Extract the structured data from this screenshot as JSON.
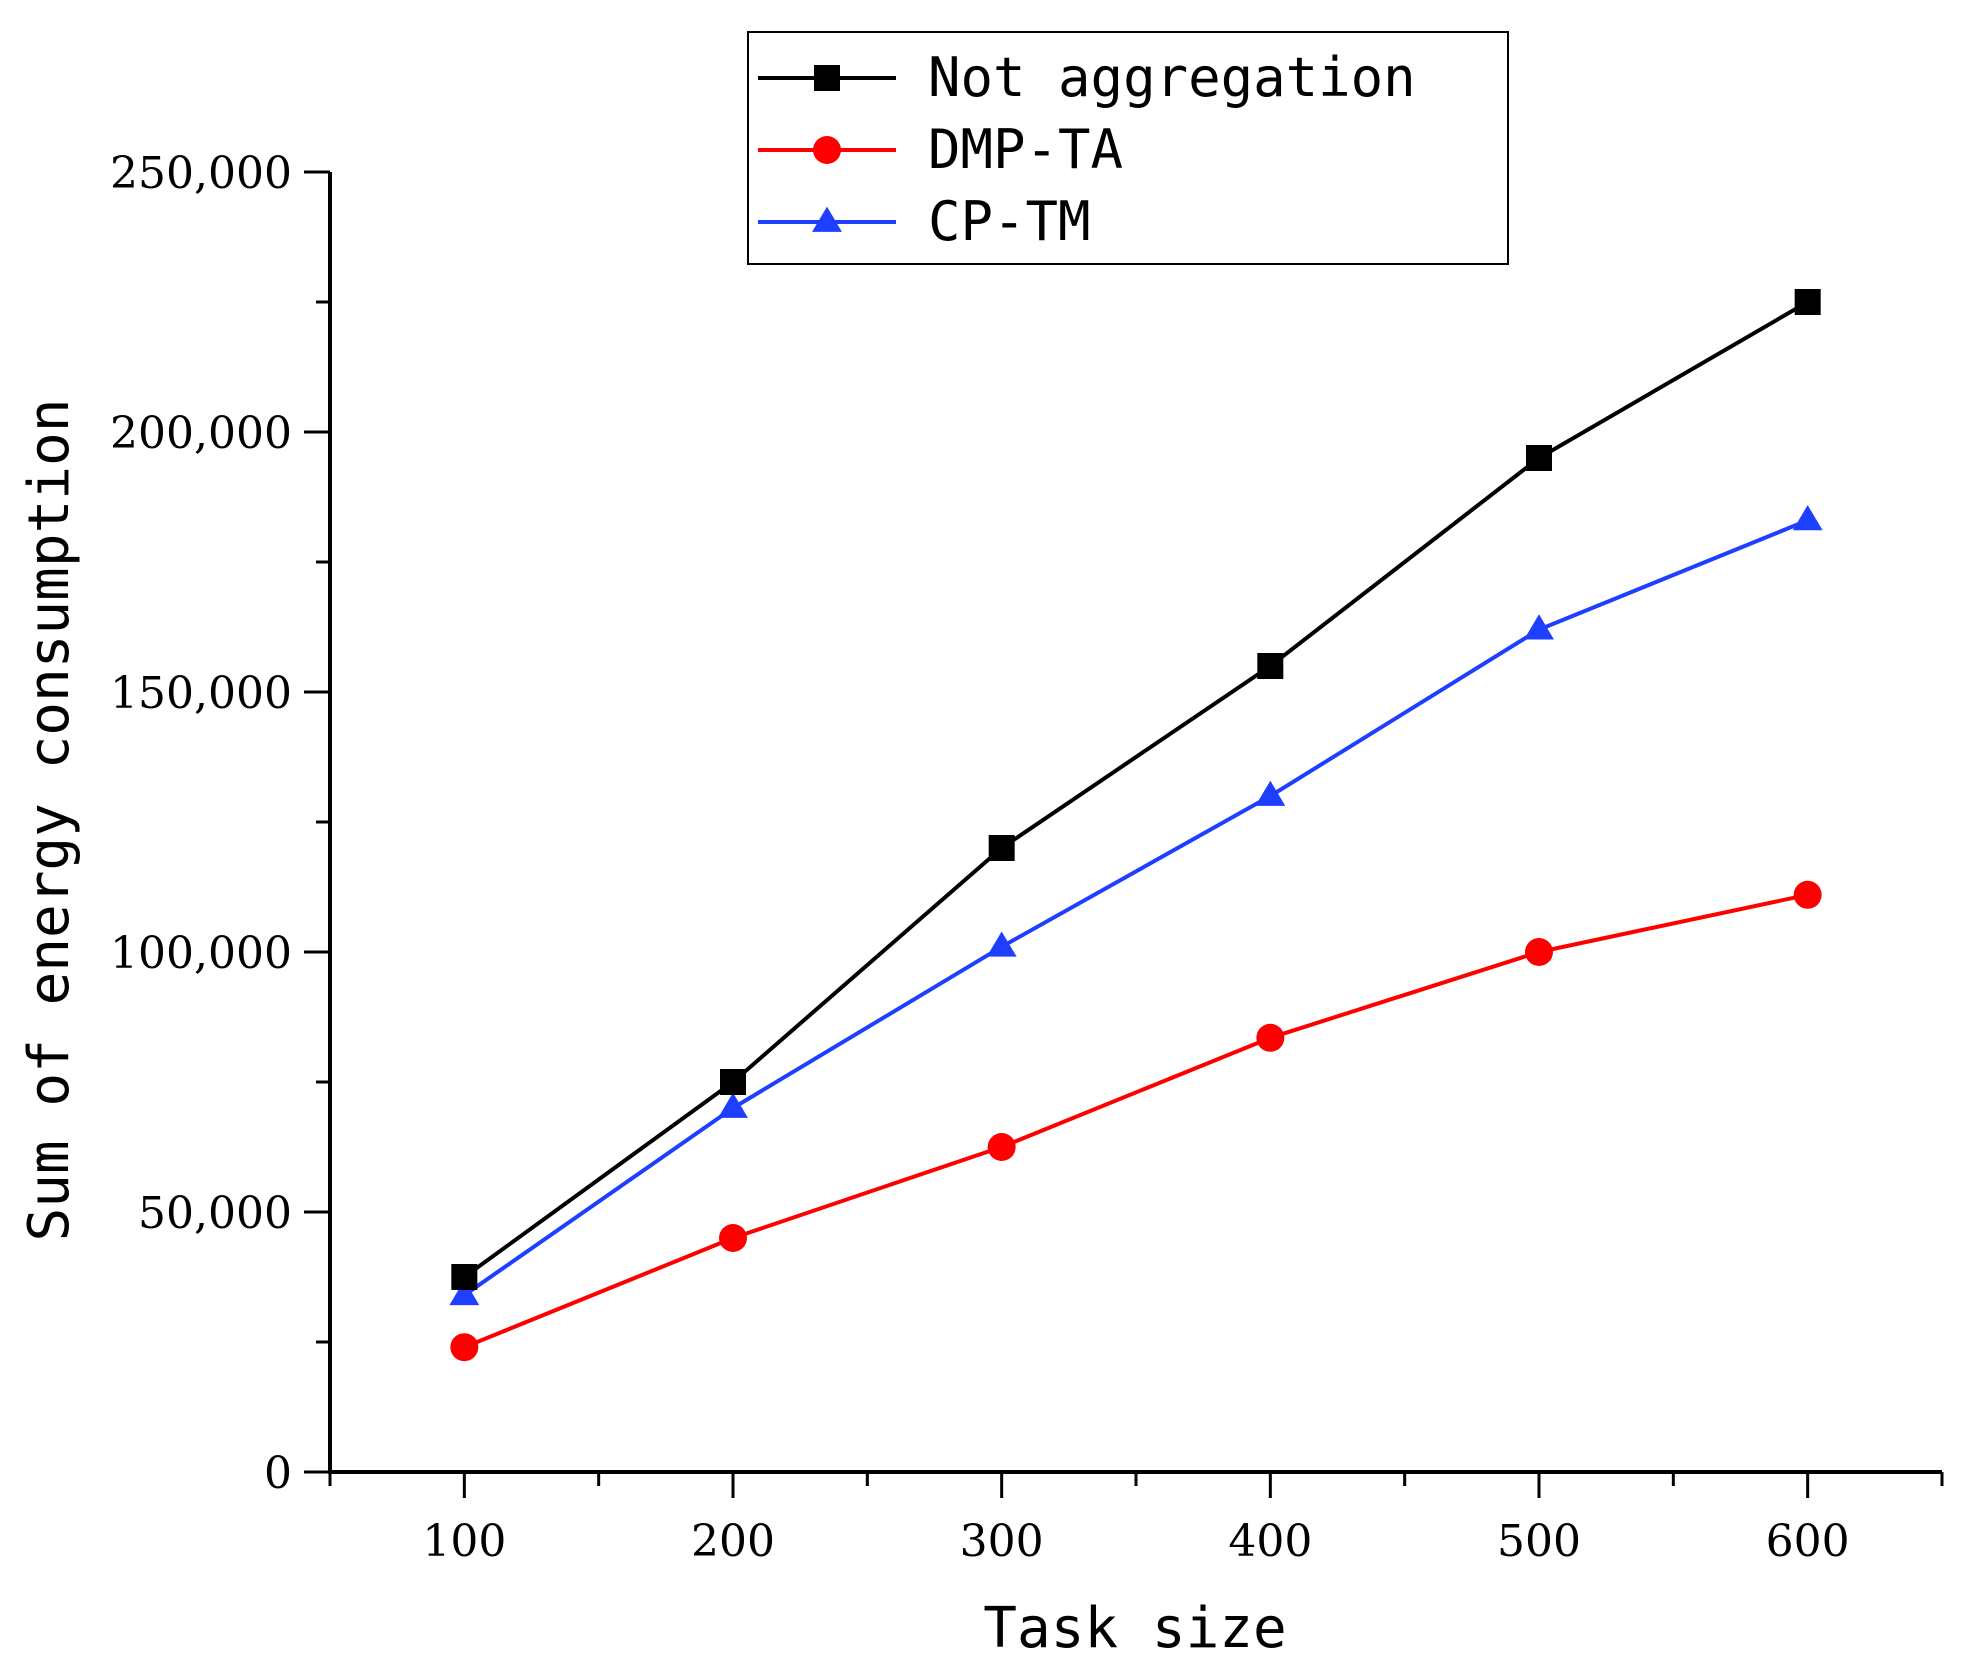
{
  "chart_data": {
    "type": "line",
    "title": "",
    "xlabel": "Task size",
    "ylabel": "Sum of energy consumption",
    "x": [
      100,
      200,
      300,
      400,
      500,
      600
    ],
    "xlim": [
      50,
      650
    ],
    "ylim": [
      0,
      250000
    ],
    "x_ticks": [
      100,
      200,
      300,
      400,
      500,
      600
    ],
    "x_tick_labels": [
      "100",
      "200",
      "300",
      "400",
      "500",
      "600"
    ],
    "y_ticks": [
      0,
      50000,
      100000,
      150000,
      200000,
      250000
    ],
    "y_tick_labels": [
      "0",
      "50,000",
      "100,000",
      "150,000",
      "200,000",
      "250,000"
    ],
    "grid": false,
    "legend_position": "top-center",
    "series": [
      {
        "name": "Not aggregation",
        "color": "#000000",
        "marker": "square",
        "values": [
          37500,
          75000,
          120000,
          155000,
          195000,
          225000
        ]
      },
      {
        "name": "DMP-TA",
        "color": "#ff0000",
        "marker": "circle",
        "values": [
          24000,
          45000,
          62500,
          83500,
          100000,
          111000
        ]
      },
      {
        "name": "CP-TM",
        "color": "#1f3fff",
        "marker": "triangle",
        "values": [
          34000,
          70000,
          101000,
          130000,
          162000,
          183000
        ]
      }
    ]
  }
}
